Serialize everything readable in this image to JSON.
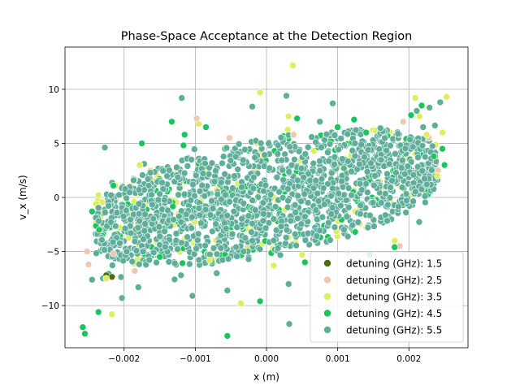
{
  "chart_data": {
    "type": "scatter",
    "title": "Phase-Space Acceptance at the Detection Region",
    "xlabel": "x (m)",
    "ylabel": "v_x (m/s)",
    "xlim": [
      -0.00283,
      0.00283
    ],
    "ylim": [
      -13.9,
      13.9
    ],
    "xticks": [
      -0.002,
      -0.001,
      0.0,
      0.001,
      0.002
    ],
    "xtick_labels": [
      "−0.002",
      "−0.001",
      "0.000",
      "0.001",
      "0.002"
    ],
    "yticks": [
      -10,
      -5,
      0,
      5,
      10
    ],
    "ytick_labels": [
      "−10",
      "−5",
      "0",
      "5",
      "10"
    ],
    "grid": true,
    "legend_position": "lower-right",
    "cloud_shape": "sheared ellipse; v_x rises linearly with x (slope about 1200 m/s per m), core roughly |x| < 0.0025 m and |v_x - 1200x| < 4.5 m/s",
    "series": [
      {
        "name": "detuning (GHz): 1.5",
        "color": "#4d6d0a",
        "points": [
          [
            -0.00225,
            -7.2
          ],
          [
            -0.00217,
            -7.35
          ]
        ]
      },
      {
        "name": "detuning (GHz): 2.5",
        "color": "#f0c8b0",
        "points": [
          [
            -0.00252,
            -5.0
          ],
          [
            -0.0025,
            -6.2
          ],
          [
            -0.00098,
            7.3
          ],
          [
            -0.00052,
            5.5
          ],
          [
            0.00187,
            -4.5
          ],
          [
            0.00192,
            7.0
          ],
          [
            0.00241,
            2.5
          ],
          [
            -0.00215,
            -5.2
          ],
          [
            0.00228,
            5.5
          ],
          [
            -0.00185,
            -6.8
          ],
          [
            0.00038,
            5.8
          ],
          [
            0.00115,
            -5.2
          ]
        ]
      },
      {
        "name": "detuning (GHz): 3.5",
        "color": "#dcef60",
        "points": [
          [
            0.00037,
            12.2
          ],
          [
            -9e-05,
            9.7
          ],
          [
            -0.00036,
            -9.8
          ],
          [
            0.00209,
            9.2
          ],
          [
            0.00253,
            9.3
          ],
          [
            -0.00217,
            -10.8
          ],
          [
            -0.00178,
            3.0
          ],
          [
            0.00215,
            7.5
          ],
          [
            0.00247,
            6.0
          ],
          [
            0.00031,
            7.5
          ],
          [
            -0.00225,
            -7.5
          ],
          [
            0.0001,
            -6.3
          ],
          [
            -0.0008,
            -5.8
          ],
          [
            0.00225,
            5.8
          ],
          [
            -0.00095,
            6.8
          ],
          [
            -0.00236,
            0.2
          ],
          [
            0.0005,
            -5.3
          ],
          [
            0.0024,
            2.0
          ],
          [
            0.0018,
            -4.0
          ]
        ]
      },
      {
        "name": "detuning (GHz): 4.5",
        "color": "#1dc45e",
        "points": [
          [
            -0.00258,
            -12.0
          ],
          [
            -0.00255,
            -12.6
          ],
          [
            -0.00236,
            -10.6
          ],
          [
            -0.00055,
            -12.8
          ],
          [
            -9e-05,
            -9.6
          ],
          [
            0.00054,
            -6.0
          ],
          [
            0.00123,
            7.2
          ],
          [
            0.00203,
            7.6
          ],
          [
            0.00218,
            8.5
          ],
          [
            0.00247,
            4.5
          ],
          [
            0.0025,
            3.0
          ],
          [
            -0.00133,
            7.0
          ],
          [
            -0.00175,
            5.0
          ],
          [
            0.00043,
            7.3
          ],
          [
            -0.00085,
            6.5
          ],
          [
            0.00145,
            -5.3
          ],
          [
            -0.00215,
            1.1
          ],
          [
            -0.00235,
            -3.0
          ],
          [
            0.0018,
            -4.6
          ],
          [
            -0.0015,
            -5.5
          ],
          [
            -0.00245,
            -1.3
          ],
          [
            0.001,
            6.5
          ],
          [
            -0.00115,
            5.8
          ],
          [
            0.0014,
            6.0
          ],
          [
            0.00235,
            3.8
          ]
        ]
      },
      {
        "name": "detuning (GHz): 5.5",
        "color": "#5fae9a",
        "points": [
          [
            -0.00119,
            9.2
          ],
          [
            0.00028,
            9.4
          ],
          [
            0.00093,
            8.7
          ],
          [
            0.00244,
            8.8
          ],
          [
            0.00229,
            8.3
          ],
          [
            3e-05,
            5.0
          ],
          [
            -0.00104,
            -9.1
          ],
          [
            0.00032,
            -11.7
          ],
          [
            -0.00203,
            -9.3
          ],
          [
            -0.00055,
            -8.6
          ],
          [
            -0.0012,
            -7.2
          ],
          [
            0.00031,
            -8.0
          ],
          [
            -0.00245,
            -7.6
          ],
          [
            -0.0018,
            -8.3
          ],
          [
            0.00211,
            8.0
          ],
          [
            0.0022,
            6.5
          ],
          [
            -0.0002,
            8.4
          ],
          [
            0.00075,
            7.0
          ],
          [
            -0.0021,
            -1.4
          ],
          [
            0.00225,
            1.2
          ],
          [
            -0.0007,
            -7.0
          ],
          [
            0.0016,
            6.4
          ]
        ]
      }
    ]
  }
}
